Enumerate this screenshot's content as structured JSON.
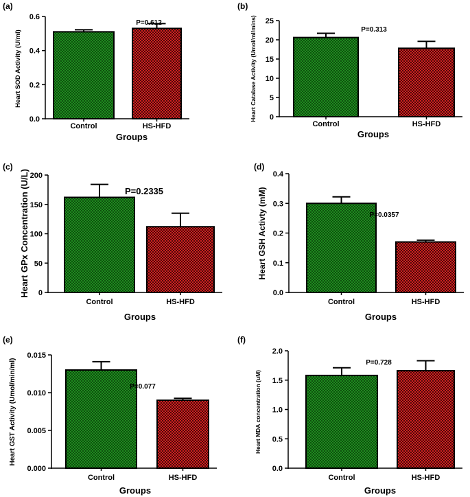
{
  "colors": {
    "green": "#1f8c1f",
    "green_dark": "#0e4f0e",
    "red": "#d11f1f",
    "red_dark": "#4a0a0a",
    "axis": "#000000"
  },
  "chart_data": [
    {
      "type": "bar",
      "panel": "(a)",
      "categories": [
        "Control",
        "HS-HFD"
      ],
      "values": [
        0.51,
        0.53
      ],
      "errors": [
        0.012,
        0.028
      ],
      "ylabel": "Heart SOD Activity (U/ml)",
      "xlabel": "Groups",
      "ylim": [
        0,
        0.6
      ],
      "yticks": [
        0.0,
        0.2,
        0.4,
        0.6
      ],
      "tick_labels": [
        "0.0",
        "0.2",
        "0.4",
        "0.6"
      ],
      "annotation": "P=0.612"
    },
    {
      "type": "bar",
      "panel": "(b)",
      "categories": [
        "Control",
        "HS-HFD"
      ],
      "values": [
        20.6,
        17.8
      ],
      "errors": [
        1.1,
        1.8
      ],
      "ylabel": "Heart Catalase Activity (Umol/ml/mins)",
      "xlabel": "Groups",
      "ylim": [
        0,
        25
      ],
      "yticks": [
        0,
        5,
        10,
        15,
        20,
        25
      ],
      "tick_labels": [
        "0",
        "5",
        "10",
        "15",
        "20",
        "25"
      ],
      "annotation": "P=0.313"
    },
    {
      "type": "bar",
      "panel": "(c)",
      "categories": [
        "Control",
        "HS-HFD"
      ],
      "values": [
        162,
        112
      ],
      "errors": [
        22,
        23
      ],
      "ylabel": "Heart GPx Concentration (U/L)",
      "xlabel": "Groups",
      "ylim": [
        0,
        200
      ],
      "yticks": [
        0,
        50,
        100,
        150,
        200
      ],
      "tick_labels": [
        "0",
        "50",
        "100",
        "150",
        "200"
      ],
      "annotation": "P=0.2335"
    },
    {
      "type": "bar",
      "panel": "(d)",
      "categories": [
        "Control",
        "HS-HFD"
      ],
      "values": [
        0.3,
        0.17
      ],
      "errors": [
        0.022,
        0.006
      ],
      "ylabel": "Heart GSH Activty (mM)",
      "xlabel": "Groups",
      "ylim": [
        0,
        0.4
      ],
      "yticks": [
        0.0,
        0.1,
        0.2,
        0.3,
        0.4
      ],
      "tick_labels": [
        "0.0",
        "0.1",
        "0.2",
        "0.3",
        "0.4"
      ],
      "annotation": "P=0.0357"
    },
    {
      "type": "bar",
      "panel": "(e)",
      "categories": [
        "Control",
        "HS-HFD"
      ],
      "values": [
        0.013,
        0.009
      ],
      "errors": [
        0.0011,
        0.00025
      ],
      "ylabel": "Heart GST Activity (Umol/min/ml)",
      "xlabel": "Groups",
      "ylim": [
        0,
        0.015
      ],
      "yticks": [
        0,
        0.005,
        0.01,
        0.015
      ],
      "tick_labels": [
        "0.000",
        "0.005",
        "0.010",
        "0.015"
      ],
      "annotation": "P=0.077"
    },
    {
      "type": "bar",
      "panel": "(f)",
      "categories": [
        "Control",
        "HS-HFD"
      ],
      "values": [
        1.58,
        1.66
      ],
      "errors": [
        0.13,
        0.17
      ],
      "ylabel": "Heart MDA concentration (uM)",
      "xlabel": "Groups",
      "ylim": [
        0,
        2.0
      ],
      "yticks": [
        0,
        0.5,
        1.0,
        1.5,
        2.0
      ],
      "tick_labels": [
        "0.0",
        "0.5",
        "1.0",
        "1.5",
        "2.0"
      ],
      "annotation": "P=0.728"
    }
  ]
}
